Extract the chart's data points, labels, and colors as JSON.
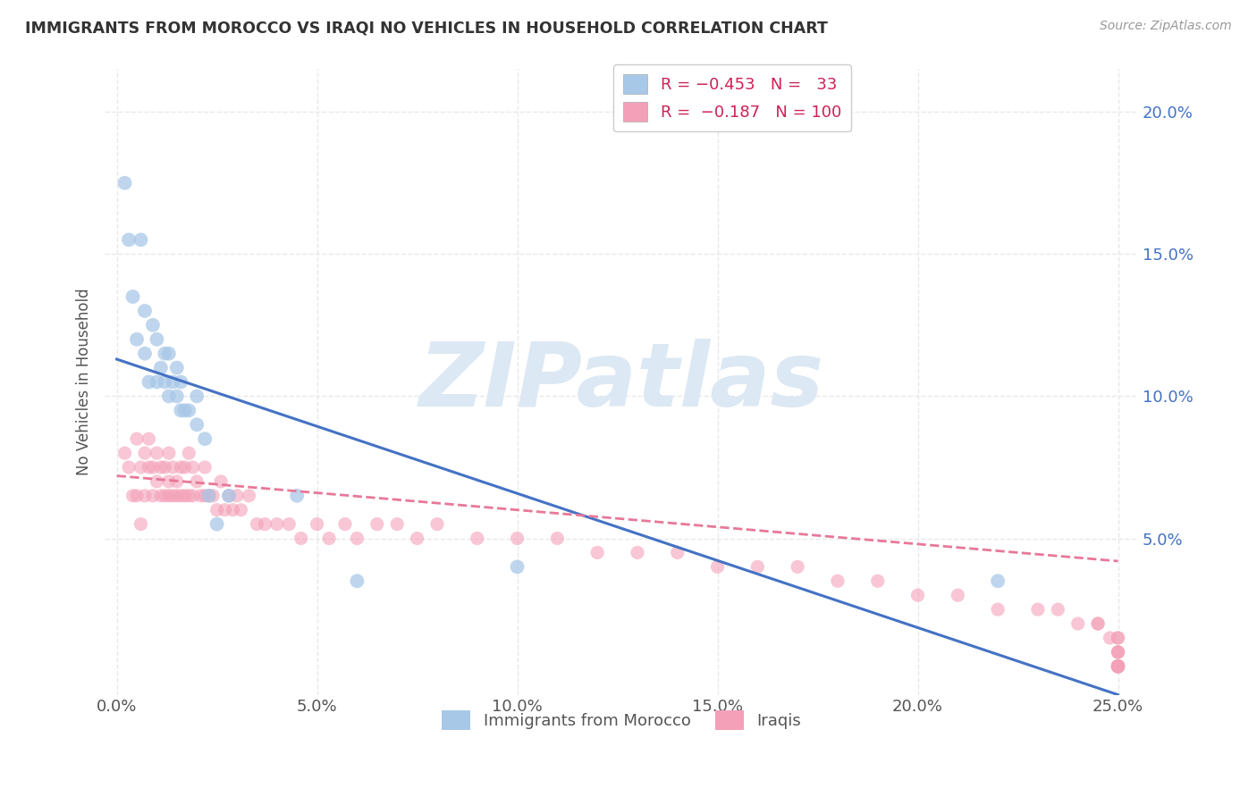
{
  "title": "IMMIGRANTS FROM MOROCCO VS IRAQI NO VEHICLES IN HOUSEHOLD CORRELATION CHART",
  "source": "Source: ZipAtlas.com",
  "ylabel_label": "No Vehicles in Household",
  "x_tick_labels": [
    "0.0%",
    "5.0%",
    "10.0%",
    "15.0%",
    "20.0%",
    "25.0%"
  ],
  "x_tick_values": [
    0.0,
    0.05,
    0.1,
    0.15,
    0.2,
    0.25
  ],
  "y_tick_labels": [
    "5.0%",
    "10.0%",
    "15.0%",
    "20.0%"
  ],
  "y_tick_values": [
    0.05,
    0.1,
    0.15,
    0.2
  ],
  "xlim": [
    -0.003,
    0.255
  ],
  "ylim": [
    -0.005,
    0.215
  ],
  "legend_labels": [
    "Immigrants from Morocco",
    "Iraqis"
  ],
  "morocco_color": "#a8c8e8",
  "iraq_color": "#f4a0b8",
  "morocco_line_color": "#4472c4",
  "iraq_line_color": "#e87898",
  "watermark_text": "ZIPatlas",
  "watermark_color": "#dce8f4",
  "background_color": "#ffffff",
  "grid_color": "#e8e8e8",
  "morocco_scatter_x": [
    0.002,
    0.003,
    0.004,
    0.005,
    0.006,
    0.007,
    0.007,
    0.008,
    0.009,
    0.01,
    0.01,
    0.011,
    0.012,
    0.012,
    0.013,
    0.013,
    0.014,
    0.015,
    0.015,
    0.016,
    0.016,
    0.017,
    0.018,
    0.02,
    0.02,
    0.022,
    0.023,
    0.025,
    0.028,
    0.045,
    0.06,
    0.1,
    0.22
  ],
  "morocco_scatter_y": [
    0.175,
    0.155,
    0.135,
    0.12,
    0.155,
    0.115,
    0.13,
    0.105,
    0.125,
    0.105,
    0.12,
    0.11,
    0.105,
    0.115,
    0.1,
    0.115,
    0.105,
    0.1,
    0.11,
    0.095,
    0.105,
    0.095,
    0.095,
    0.09,
    0.1,
    0.085,
    0.065,
    0.055,
    0.065,
    0.065,
    0.035,
    0.04,
    0.035
  ],
  "iraq_scatter_x": [
    0.002,
    0.003,
    0.004,
    0.005,
    0.005,
    0.006,
    0.006,
    0.007,
    0.007,
    0.008,
    0.008,
    0.009,
    0.009,
    0.01,
    0.01,
    0.011,
    0.011,
    0.012,
    0.012,
    0.013,
    0.013,
    0.013,
    0.014,
    0.014,
    0.015,
    0.015,
    0.016,
    0.016,
    0.017,
    0.017,
    0.018,
    0.018,
    0.019,
    0.019,
    0.02,
    0.021,
    0.022,
    0.022,
    0.023,
    0.024,
    0.025,
    0.026,
    0.027,
    0.028,
    0.029,
    0.03,
    0.031,
    0.033,
    0.035,
    0.037,
    0.04,
    0.043,
    0.046,
    0.05,
    0.053,
    0.057,
    0.06,
    0.065,
    0.07,
    0.075,
    0.08,
    0.09,
    0.1,
    0.11,
    0.12,
    0.13,
    0.14,
    0.15,
    0.16,
    0.17,
    0.18,
    0.19,
    0.2,
    0.21,
    0.22,
    0.23,
    0.235,
    0.24,
    0.245,
    0.245,
    0.248,
    0.25,
    0.25,
    0.25,
    0.25,
    0.25,
    0.25,
    0.25,
    0.25,
    0.25,
    0.25,
    0.25,
    0.25,
    0.25,
    0.25,
    0.25,
    0.25,
    0.25,
    0.25,
    0.25
  ],
  "iraq_scatter_y": [
    0.08,
    0.075,
    0.065,
    0.085,
    0.065,
    0.075,
    0.055,
    0.08,
    0.065,
    0.075,
    0.085,
    0.065,
    0.075,
    0.07,
    0.08,
    0.065,
    0.075,
    0.065,
    0.075,
    0.07,
    0.065,
    0.08,
    0.065,
    0.075,
    0.065,
    0.07,
    0.065,
    0.075,
    0.065,
    0.075,
    0.065,
    0.08,
    0.065,
    0.075,
    0.07,
    0.065,
    0.075,
    0.065,
    0.065,
    0.065,
    0.06,
    0.07,
    0.06,
    0.065,
    0.06,
    0.065,
    0.06,
    0.065,
    0.055,
    0.055,
    0.055,
    0.055,
    0.05,
    0.055,
    0.05,
    0.055,
    0.05,
    0.055,
    0.055,
    0.05,
    0.055,
    0.05,
    0.05,
    0.05,
    0.045,
    0.045,
    0.045,
    0.04,
    0.04,
    0.04,
    0.035,
    0.035,
    0.03,
    0.03,
    0.025,
    0.025,
    0.025,
    0.02,
    0.02,
    0.02,
    0.015,
    0.015,
    0.015,
    0.01,
    0.01,
    0.01,
    0.005,
    0.005,
    0.005,
    0.005,
    0.005,
    0.005,
    0.005,
    0.005,
    0.005,
    0.005,
    0.005,
    0.005,
    0.005,
    0.005
  ],
  "morocco_line_x0": 0.0,
  "morocco_line_y0": 0.113,
  "morocco_line_x1": 0.25,
  "morocco_line_y1": -0.005,
  "iraq_line_x0": 0.0,
  "iraq_line_y0": 0.072,
  "iraq_line_x1": 0.25,
  "iraq_line_y1": 0.042
}
